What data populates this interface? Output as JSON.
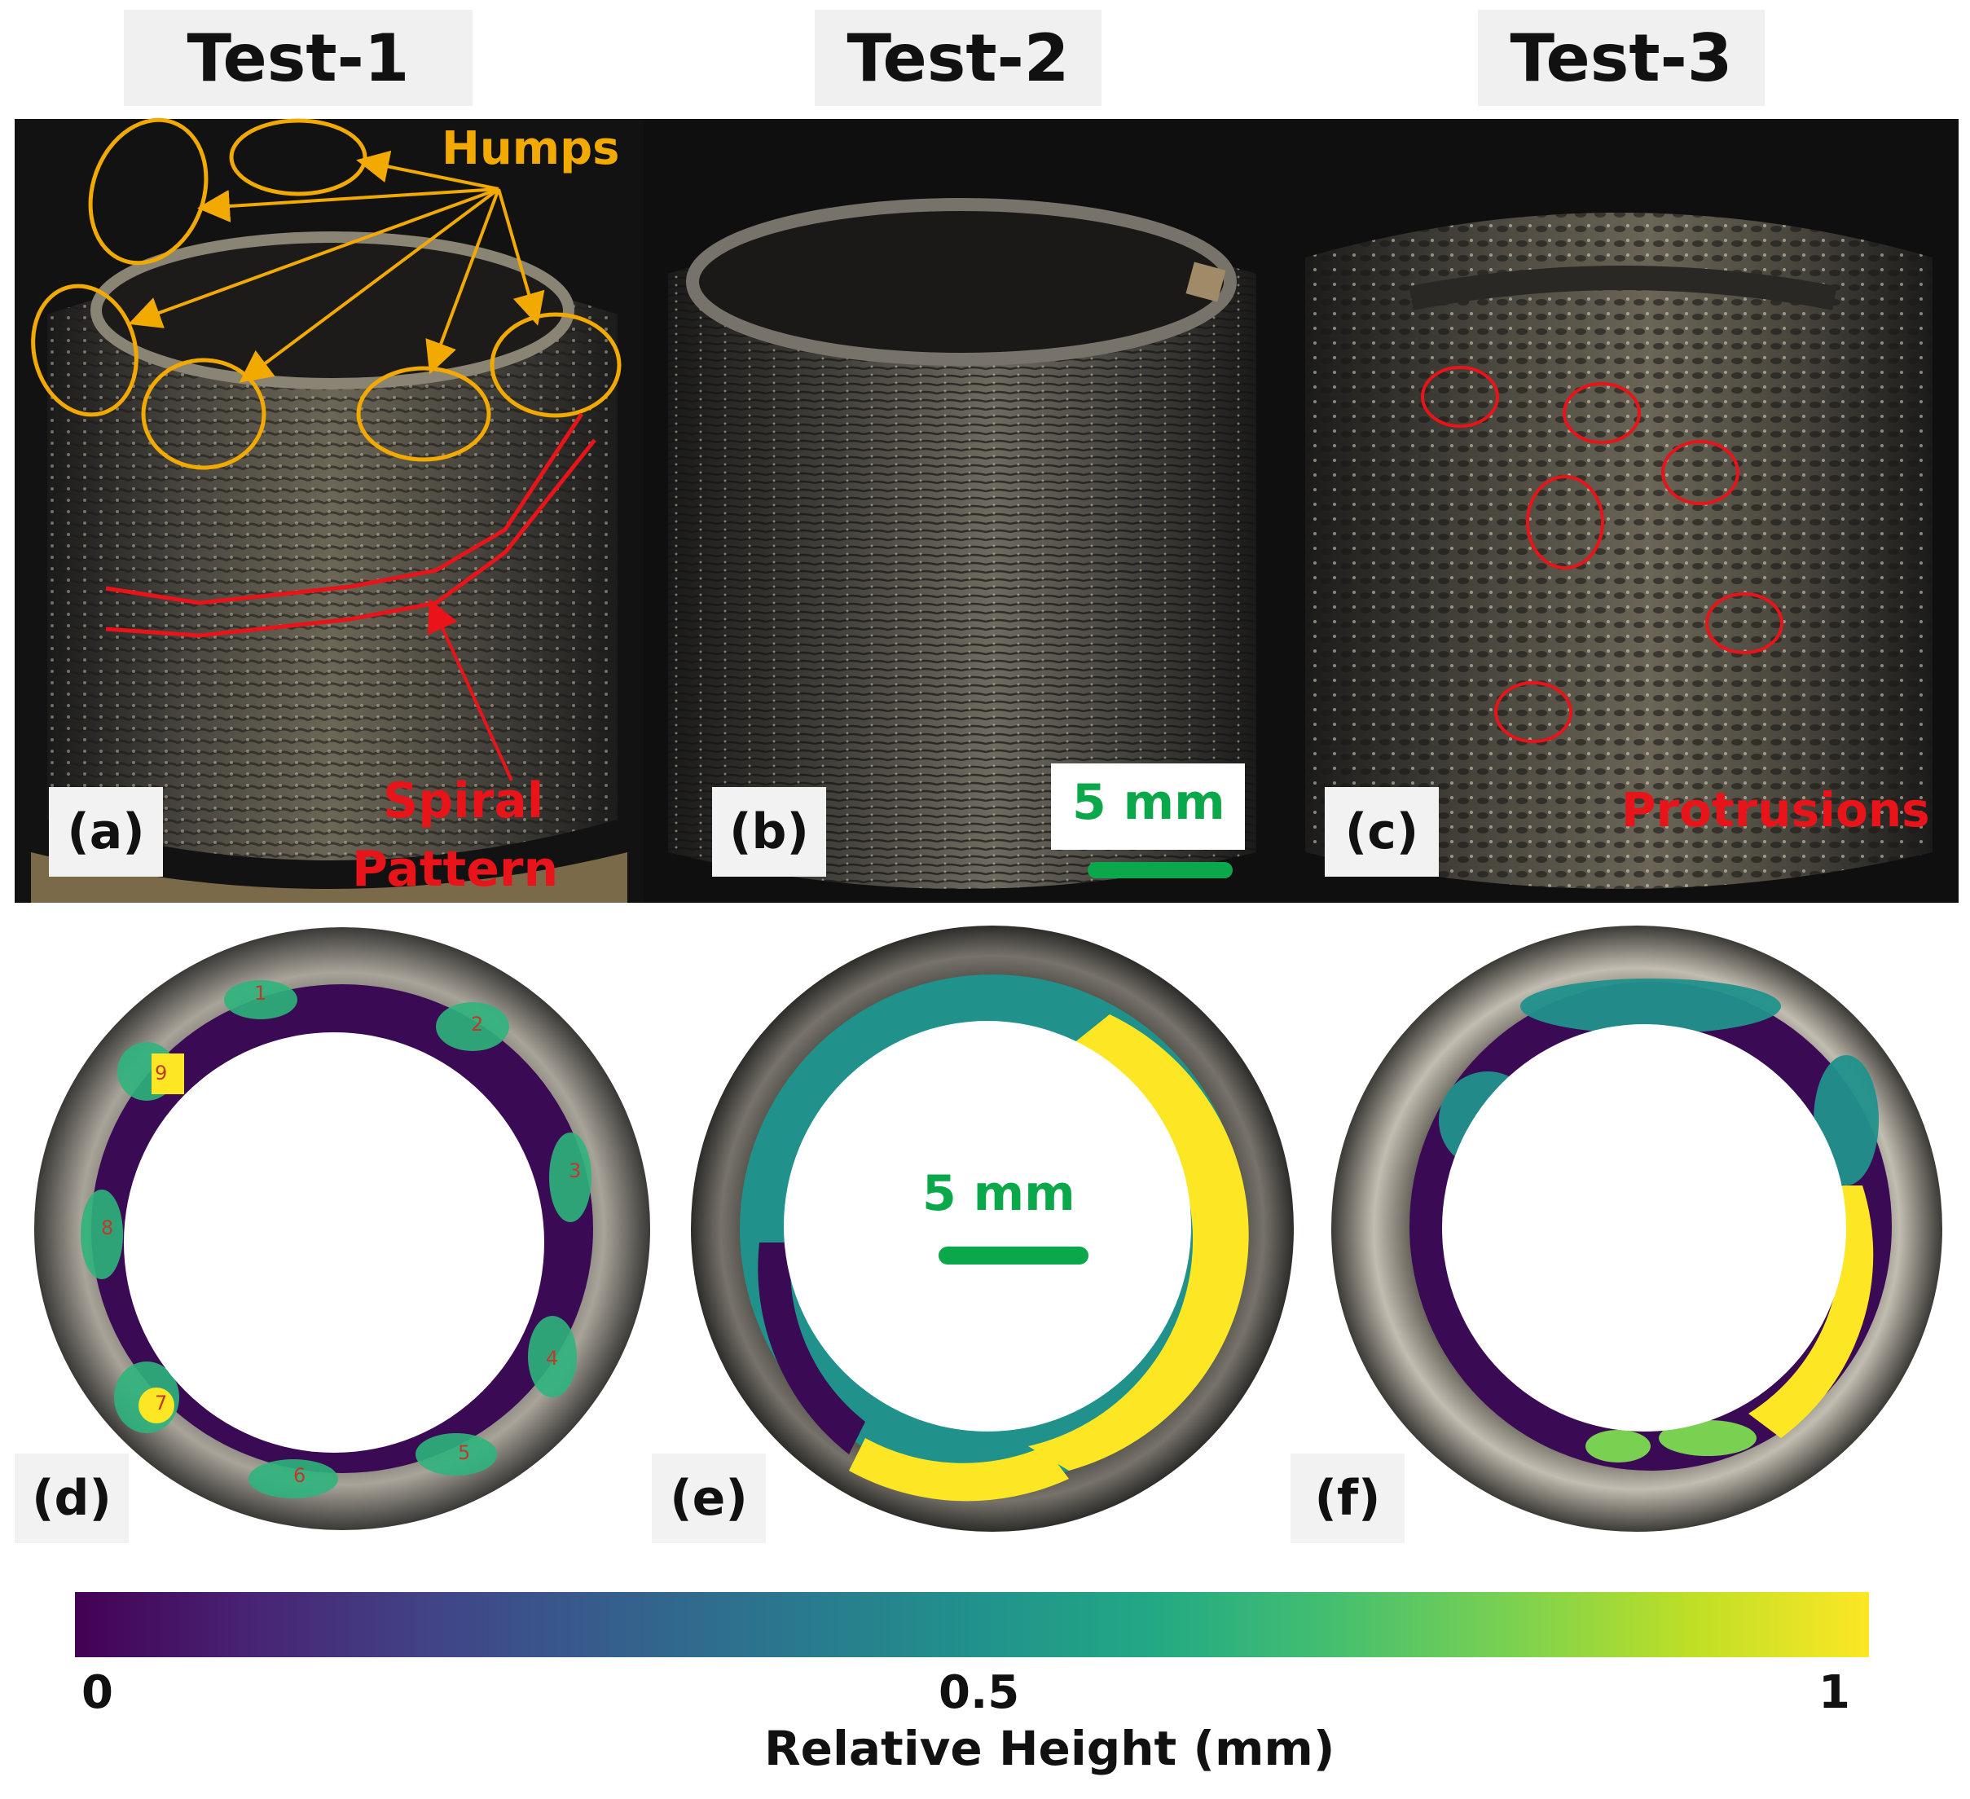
{
  "columns": [
    {
      "title": "Test-1"
    },
    {
      "title": "Test-2"
    },
    {
      "title": "Test-3"
    }
  ],
  "panels": {
    "a": "(a)",
    "b": "(b)",
    "c": "(c)",
    "d": "(d)",
    "e": "(e)",
    "f": "(f)"
  },
  "annotations": {
    "humps": "Humps",
    "spiral_line1": "Spiral",
    "spiral_line2": "Pattern",
    "protrusions": "Protrusions",
    "scale_top": "5 mm",
    "scale_mid": "5 mm"
  },
  "hump_numbers": [
    "1",
    "2",
    "3",
    "4",
    "5",
    "6",
    "7",
    "8",
    "9"
  ],
  "colorbar": {
    "min_label": "0",
    "mid_label": "0.5",
    "max_label": "1",
    "title": "Relative Height (mm)",
    "colormap": "viridis"
  },
  "colors": {
    "hump_annotation": "#f2a900",
    "defect_annotation": "#e8141a",
    "scale_bar": "#0aa84a"
  }
}
